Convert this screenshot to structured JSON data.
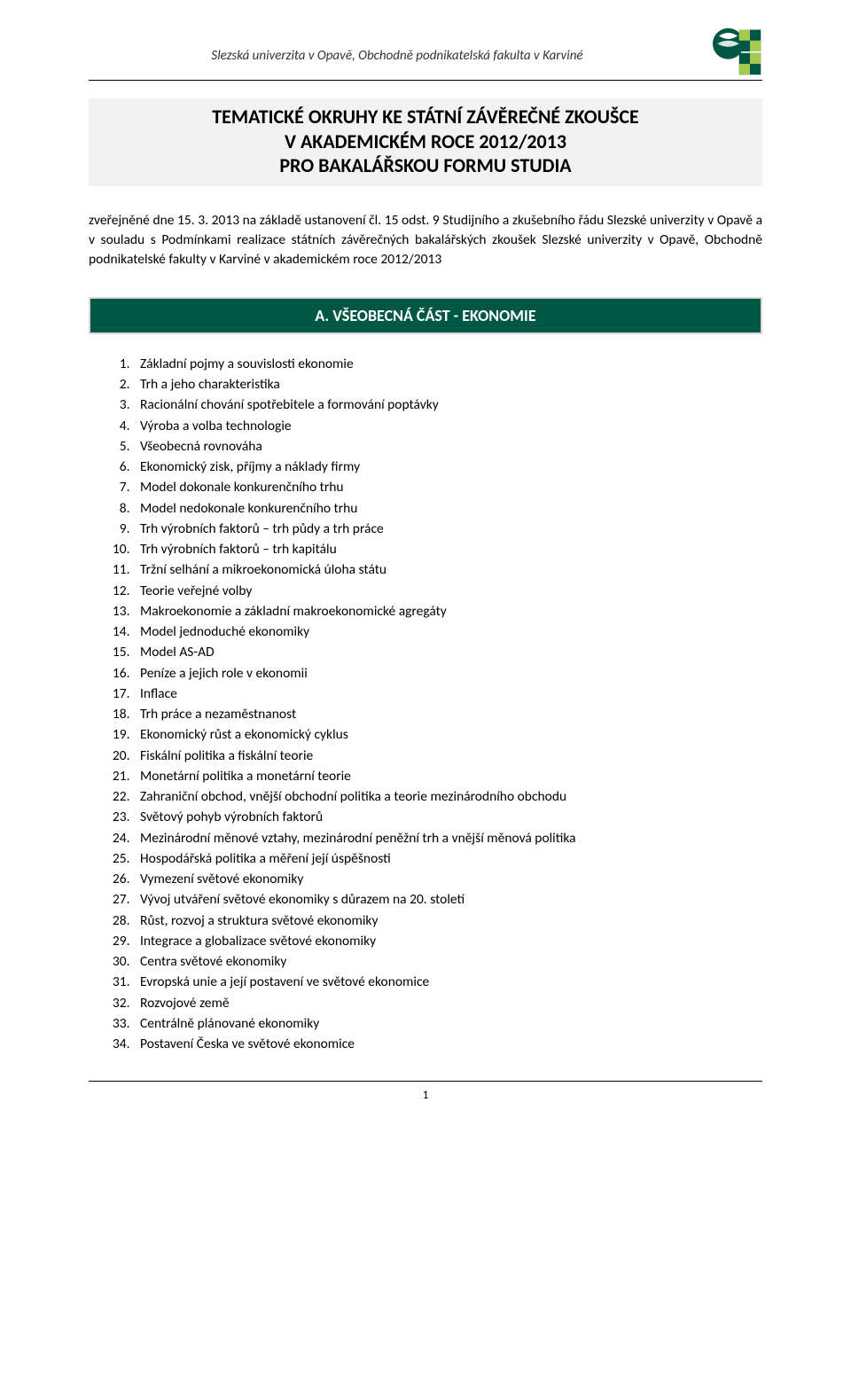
{
  "header": {
    "institution": "Slezská univerzita v Opavě, Obchodně podnikatelská fakulta v Karviné",
    "logo_colors": {
      "primary": "#005744",
      "accent": "#a6c94f",
      "bg": "#ffffff"
    }
  },
  "title": {
    "line1": "TEMATICKÉ OKRUHY KE STÁTNÍ ZÁVĚREČNÉ ZKOUŠCE",
    "line2": "V AKADEMICKÉM ROCE 2012/2013",
    "line3": "PRO BAKALÁŘSKOU FORMU STUDIA"
  },
  "intro": "zveřejněné dne 15. 3. 2013 na základě ustanovení čl. 15 odst. 9 Studijního a zkušebního řádu Slezské univerzity v Opavě a v souladu s Podmínkami realizace státních závěrečných bakalářských zkoušek Slezské univerzity v Opavě, Obchodně podnikatelské fakulty v Karviné v akademickém roce 2012/2013",
  "section_a": {
    "heading": "A. VŠEOBECNÁ ČÁST - EKONOMIE",
    "items": [
      "Základní pojmy a souvislosti ekonomie",
      "Trh a jeho charakteristika",
      "Racionální chování spotřebitele a formování poptávky",
      "Výroba a volba technologie",
      "Všeobecná rovnováha",
      "Ekonomický zisk, příjmy a náklady firmy",
      "Model dokonale konkurenčního trhu",
      "Model nedokonale konkurenčního trhu",
      "Trh výrobních faktorů – trh půdy a trh práce",
      "Trh výrobních faktorů – trh kapitálu",
      "Tržní selhání a mikroekonomická úloha státu",
      "Teorie veřejné volby",
      "Makroekonomie a základní makroekonomické agregáty",
      "Model jednoduché ekonomiky",
      "Model AS-AD",
      "Peníze a jejich role v ekonomii",
      "Inflace",
      "Trh práce a nezaměstnanost",
      "Ekonomický růst a ekonomický cyklus",
      "Fiskální politika a fiskální teorie",
      "Monetární politika a monetární teorie",
      "Zahraniční obchod, vnější obchodní politika a teorie mezinárodního obchodu",
      "Světový pohyb výrobních faktorů",
      "Mezinárodní měnové vztahy, mezinárodní peněžní trh a vnější měnová politika",
      "Hospodářská politika a měření její úspěšnosti",
      "Vymezení světové ekonomiky",
      "Vývoj utváření světové ekonomiky s důrazem na 20. století",
      "Růst, rozvoj a struktura světové ekonomiky",
      "Integrace a globalizace světové ekonomiky",
      "Centra světové ekonomiky",
      "Evropská unie a její postavení ve světové ekonomice",
      "Rozvojové země",
      "Centrálně plánované ekonomiky",
      "Postavení Česka ve světové ekonomice"
    ]
  },
  "footer": {
    "page_number": "1"
  },
  "styles": {
    "page_bg": "#ffffff",
    "title_bg": "#f2f2f2",
    "section_band_bg": "#005744",
    "section_band_border": "#d9d9d9",
    "section_band_text": "#ffffff",
    "body_text": "#000000",
    "rule_color": "#000000",
    "body_fontsize_pt": 12,
    "title_fontsize_pt": 17,
    "section_heading_fontsize_pt": 14
  }
}
